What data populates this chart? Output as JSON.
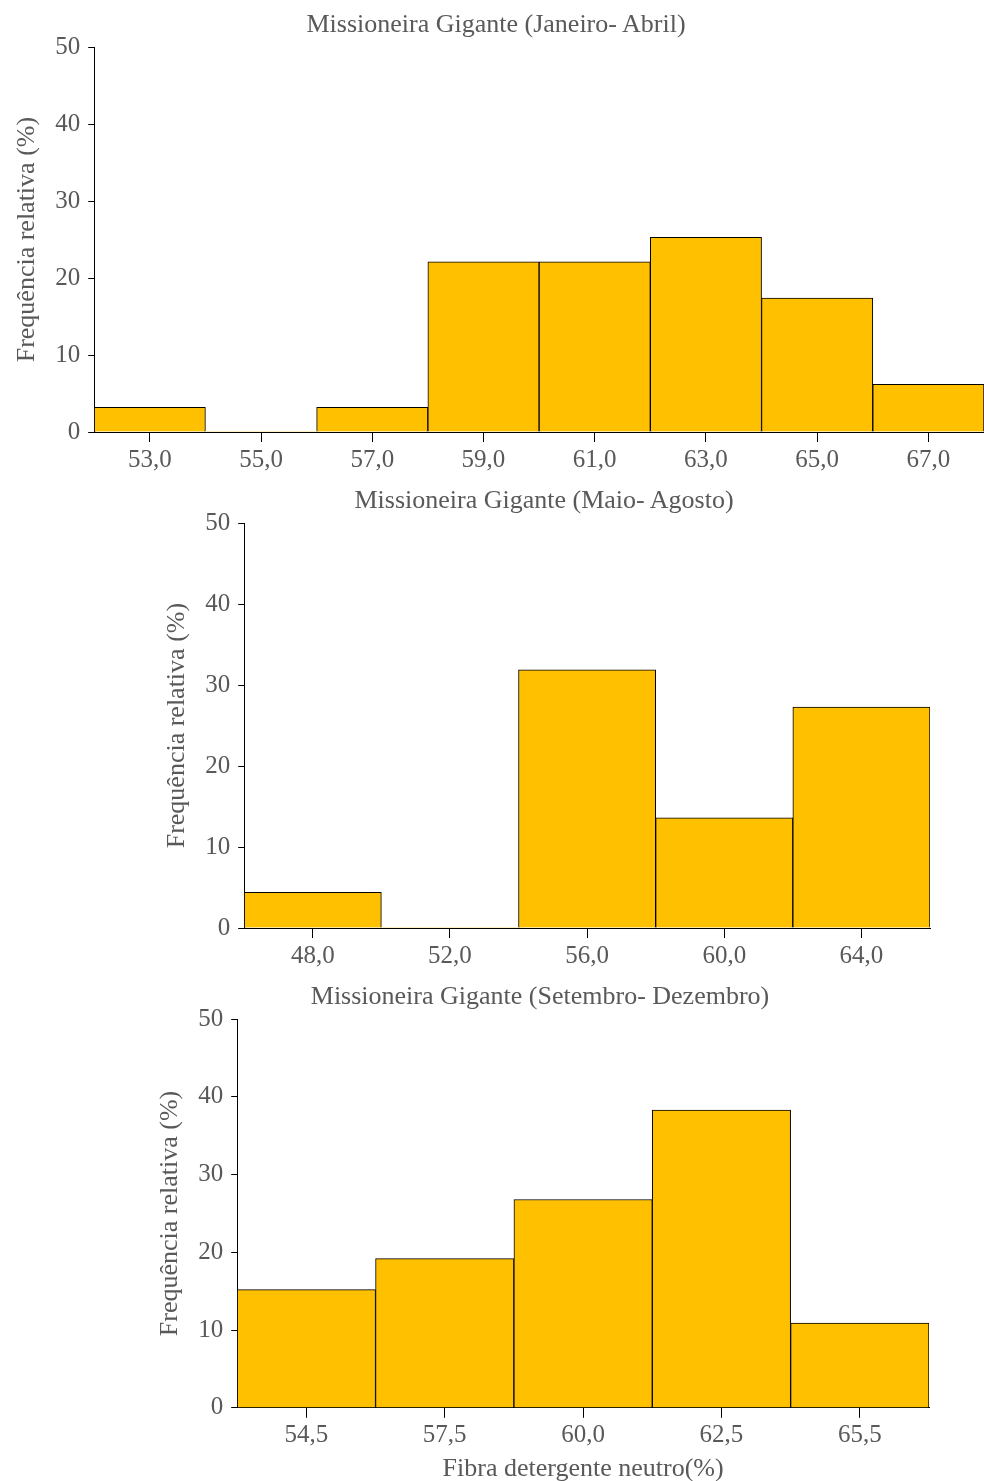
{
  "chart_data": [
    {
      "type": "histogram",
      "title": "Missioneira Gigante (Janeiro- Abril)",
      "ylabel": "Frequência relativa (%)",
      "bins": [
        52,
        54,
        56,
        58,
        60,
        62,
        64,
        66,
        68
      ],
      "values": [
        3.2,
        0,
        3.2,
        22.1,
        22.1,
        25.3,
        17.4,
        6.2
      ],
      "color": "#ffc000",
      "xlim": [
        52,
        68
      ],
      "xticks": [
        {
          "value": 53,
          "label": "53,0"
        },
        {
          "value": 55,
          "label": "55,0"
        },
        {
          "value": 57,
          "label": "57,0"
        },
        {
          "value": 59,
          "label": "59,0"
        },
        {
          "value": 61,
          "label": "61,0"
        },
        {
          "value": 63,
          "label": "63,0"
        },
        {
          "value": 65,
          "label": "65,0"
        },
        {
          "value": 67,
          "label": "67,0"
        }
      ],
      "ylim": [
        0,
        50
      ],
      "yticks": [
        0,
        10,
        20,
        30,
        40,
        50
      ],
      "grid": false,
      "legend": false
    },
    {
      "type": "histogram",
      "title": "Missioneira Gigante (Maio- Agosto)",
      "ylabel": "Frequência relativa (%)",
      "bins": [
        46,
        50,
        54,
        58,
        62,
        66
      ],
      "values": [
        4.4,
        0,
        31.9,
        13.6,
        27.3
      ],
      "color": "#ffc000",
      "xlim": [
        46,
        66
      ],
      "xticks": [
        {
          "value": 48,
          "label": "48,0"
        },
        {
          "value": 52,
          "label": "52,0"
        },
        {
          "value": 56,
          "label": "56,0"
        },
        {
          "value": 60,
          "label": "60,0"
        },
        {
          "value": 64,
          "label": "64,0"
        }
      ],
      "ylim": [
        0,
        50
      ],
      "yticks": [
        0,
        10,
        20,
        30,
        40,
        50
      ],
      "grid": false,
      "legend": false
    },
    {
      "type": "bar",
      "title": "Missioneira Gigante (Setembro- Dezembro)",
      "ylabel": "Frequência relativa (%)",
      "xlabel": "Fibra detergente neutro(%)",
      "categories": [
        "54,5",
        "57,5",
        "60,0",
        "62,5",
        "65,5"
      ],
      "values": [
        15.2,
        19.2,
        26.8,
        38.3,
        10.9
      ],
      "color": "#ffc000",
      "ylim": [
        0,
        50
      ],
      "yticks": [
        0,
        10,
        20,
        30,
        40,
        50
      ],
      "grid": false,
      "legend": false
    }
  ]
}
